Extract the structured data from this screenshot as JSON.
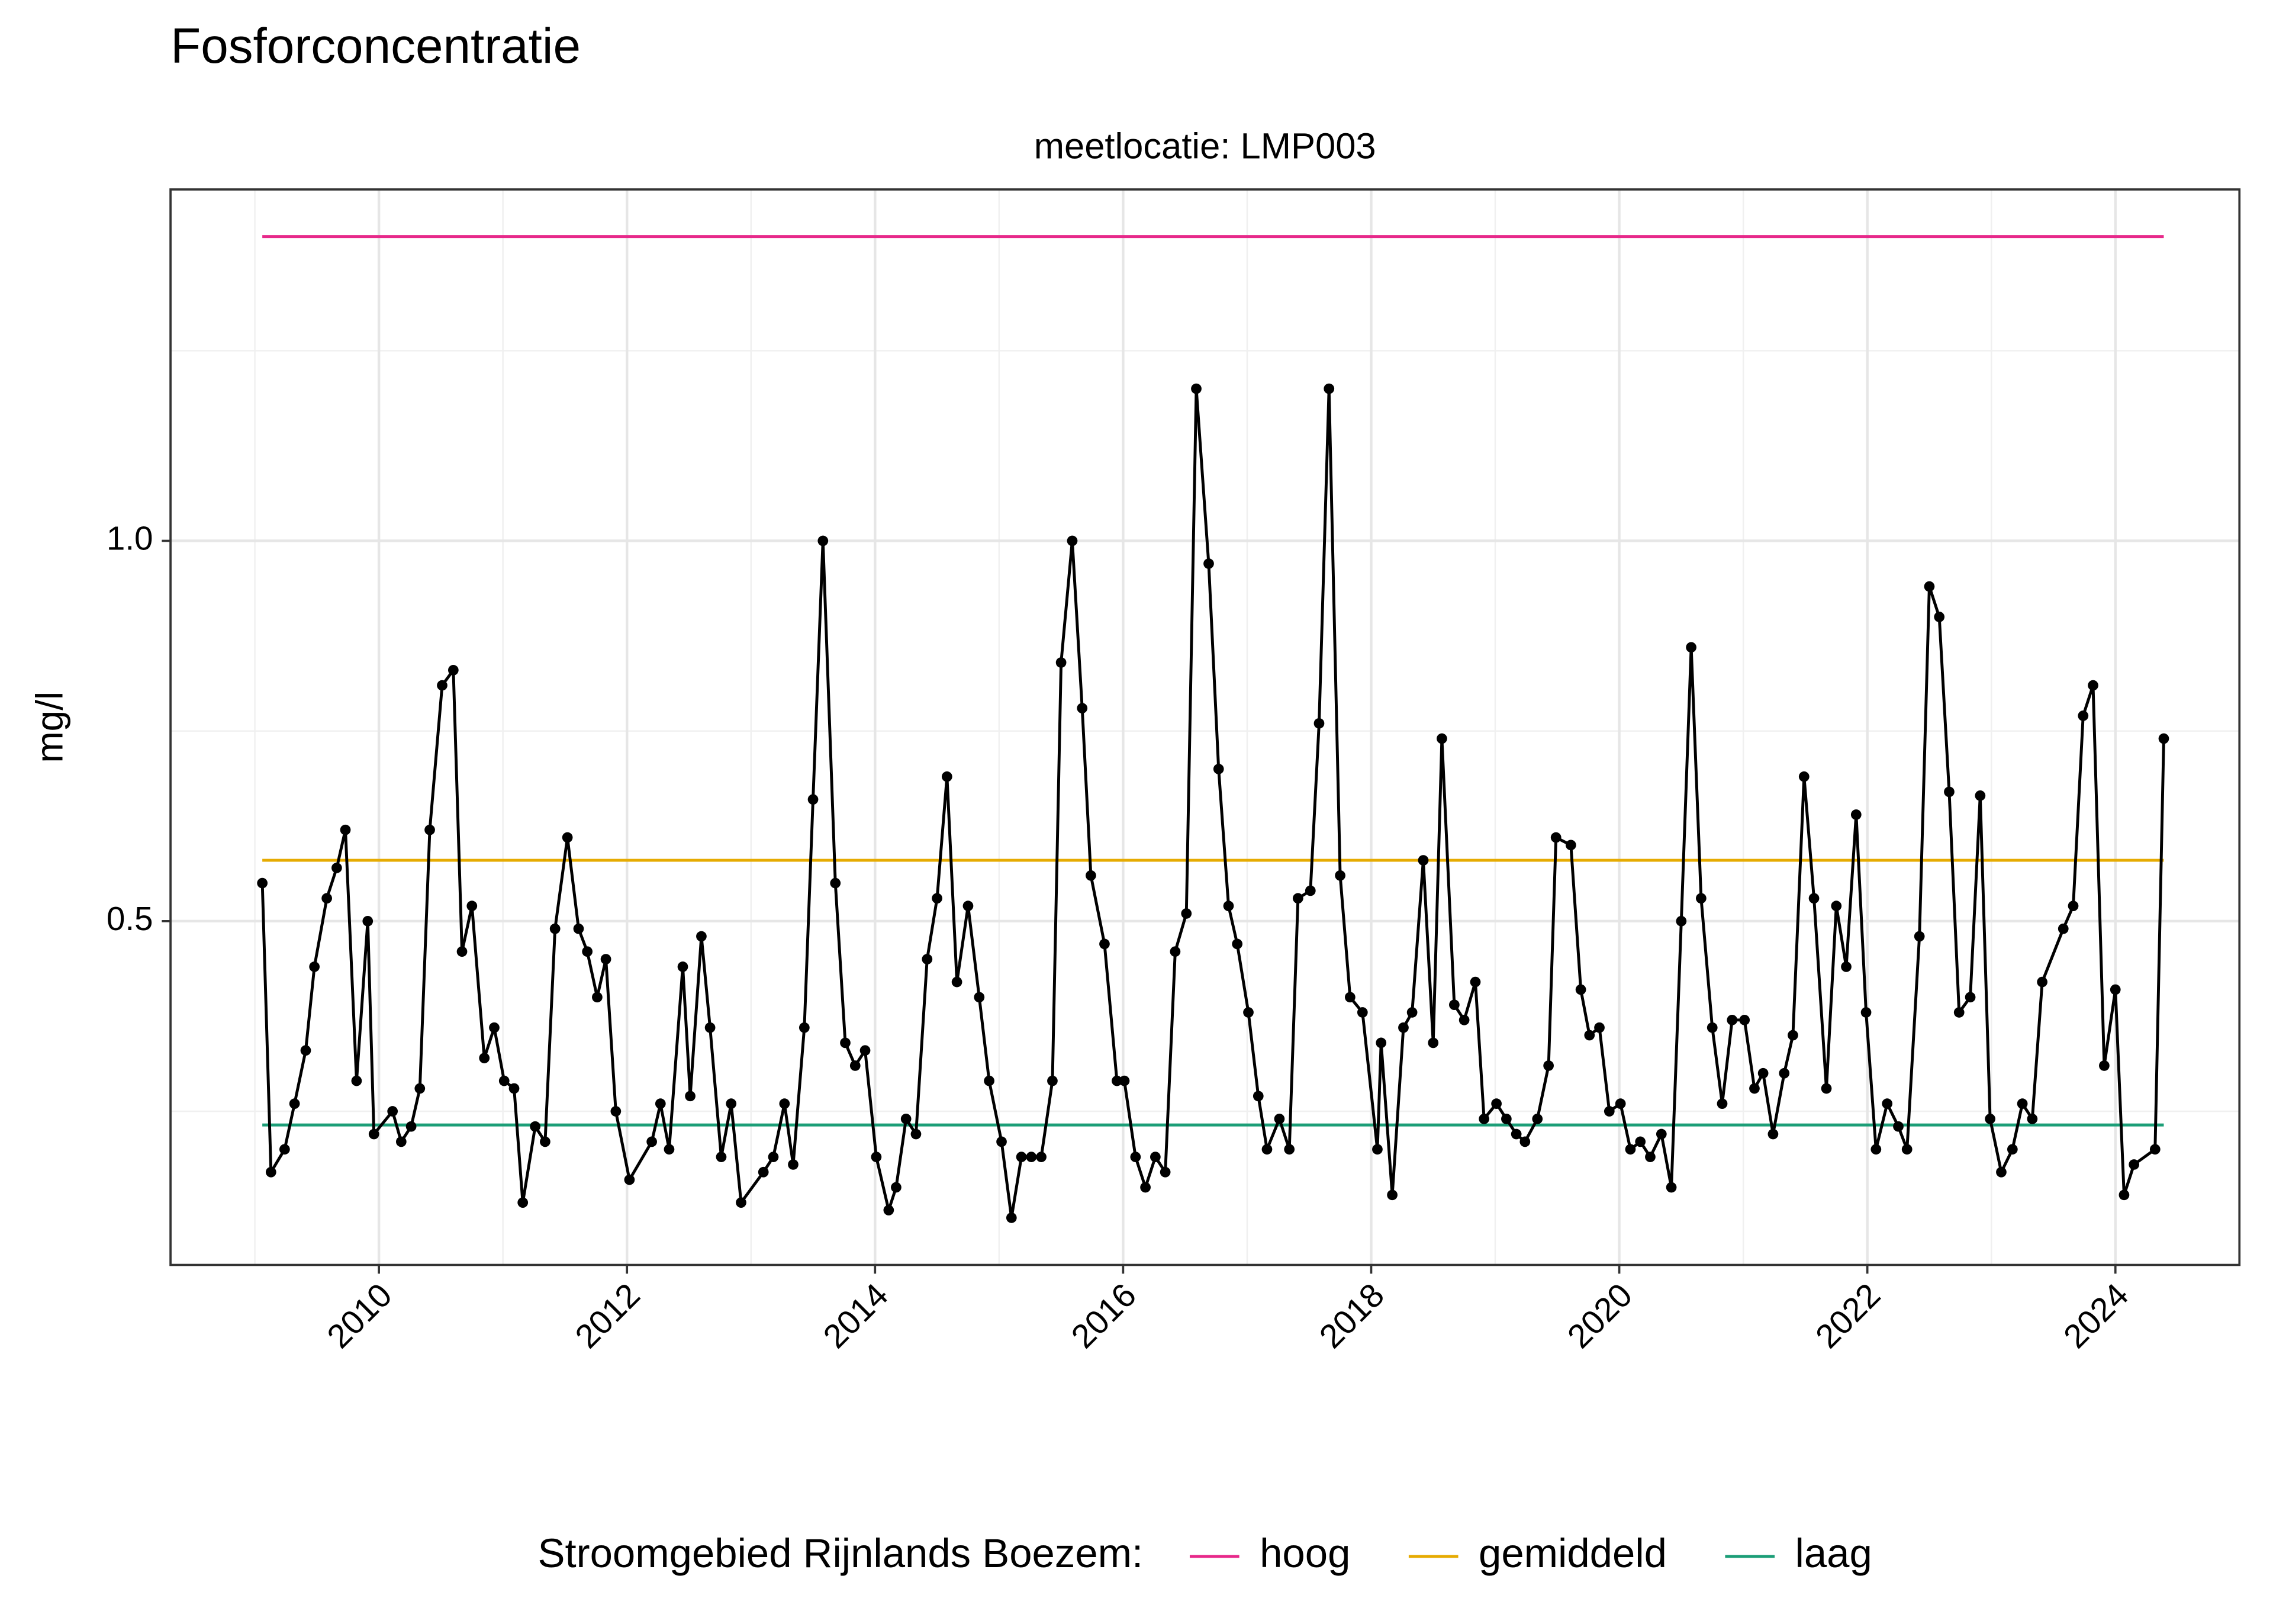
{
  "chart_data": {
    "type": "line",
    "title": "Fosforconcentratie",
    "facet_label": "meetlocatie: LMP003",
    "ylabel": "mg/l",
    "color": "#000000",
    "x": [
      2009.06,
      2009.13,
      2009.24,
      2009.32,
      2009.41,
      2009.48,
      2009.58,
      2009.66,
      2009.73,
      2009.82,
      2009.91,
      2009.96,
      2010.11,
      2010.18,
      2010.26,
      2010.33,
      2010.41,
      2010.51,
      2010.6,
      2010.67,
      2010.75,
      2010.85,
      2010.93,
      2011.01,
      2011.09,
      2011.16,
      2011.26,
      2011.34,
      2011.42,
      2011.52,
      2011.61,
      2011.68,
      2011.76,
      2011.83,
      2011.91,
      2012.02,
      2012.2,
      2012.27,
      2012.34,
      2012.45,
      2012.51,
      2012.6,
      2012.67,
      2012.76,
      2012.84,
      2012.92,
      2013.1,
      2013.18,
      2013.27,
      2013.34,
      2013.43,
      2013.5,
      2013.58,
      2013.68,
      2013.76,
      2013.84,
      2013.92,
      2014.01,
      2014.11,
      2014.17,
      2014.25,
      2014.33,
      2014.42,
      2014.5,
      2014.58,
      2014.66,
      2014.75,
      2014.84,
      2014.92,
      2015.02,
      2015.1,
      2015.18,
      2015.26,
      2015.34,
      2015.43,
      2015.5,
      2015.59,
      2015.67,
      2015.74,
      2015.85,
      2015.95,
      2016.01,
      2016.1,
      2016.18,
      2016.26,
      2016.34,
      2016.42,
      2016.51,
      2016.59,
      2016.69,
      2016.77,
      2016.85,
      2016.92,
      2017.01,
      2017.09,
      2017.16,
      2017.26,
      2017.34,
      2017.41,
      2017.51,
      2017.58,
      2017.66,
      2017.75,
      2017.83,
      2017.93,
      2018.05,
      2018.08,
      2018.17,
      2018.26,
      2018.33,
      2018.42,
      2018.5,
      2018.57,
      2018.67,
      2018.75,
      2018.84,
      2018.91,
      2019.01,
      2019.09,
      2019.17,
      2019.24,
      2019.34,
      2019.43,
      2019.49,
      2019.61,
      2019.69,
      2019.76,
      2019.84,
      2019.92,
      2020.01,
      2020.09,
      2020.17,
      2020.25,
      2020.34,
      2020.42,
      2020.5,
      2020.58,
      2020.66,
      2020.75,
      2020.83,
      2020.91,
      2021.01,
      2021.09,
      2021.16,
      2021.24,
      2021.33,
      2021.4,
      2021.49,
      2021.57,
      2021.67,
      2021.75,
      2021.83,
      2021.91,
      2021.99,
      2022.07,
      2022.16,
      2022.25,
      2022.32,
      2022.42,
      2022.5,
      2022.58,
      2022.66,
      2022.74,
      2022.83,
      2022.91,
      2022.99,
      2023.08,
      2023.17,
      2023.25,
      2023.33,
      2023.41,
      2023.58,
      2023.66,
      2023.74,
      2023.82,
      2023.91,
      2024.0,
      2024.07,
      2024.15,
      2024.32,
      2024.39
    ],
    "values": [
      0.55,
      0.17,
      0.2,
      0.26,
      0.33,
      0.44,
      0.53,
      0.57,
      0.62,
      0.29,
      0.5,
      0.22,
      0.25,
      0.21,
      0.23,
      0.28,
      0.62,
      0.81,
      0.83,
      0.46,
      0.52,
      0.32,
      0.36,
      0.29,
      0.28,
      0.13,
      0.23,
      0.21,
      0.49,
      0.61,
      0.49,
      0.46,
      0.4,
      0.45,
      0.25,
      0.16,
      0.21,
      0.26,
      0.2,
      0.44,
      0.27,
      0.48,
      0.36,
      0.19,
      0.26,
      0.13,
      0.17,
      0.19,
      0.26,
      0.18,
      0.36,
      0.66,
      1.0,
      0.55,
      0.34,
      0.31,
      0.33,
      0.19,
      0.12,
      0.15,
      0.24,
      0.22,
      0.45,
      0.53,
      0.69,
      0.42,
      0.52,
      0.4,
      0.29,
      0.21,
      0.11,
      0.19,
      0.19,
      0.19,
      0.29,
      0.84,
      1.0,
      0.78,
      0.56,
      0.47,
      0.29,
      0.29,
      0.19,
      0.15,
      0.19,
      0.17,
      0.46,
      0.51,
      1.2,
      0.97,
      0.7,
      0.52,
      0.47,
      0.38,
      0.27,
      0.2,
      0.24,
      0.2,
      0.53,
      0.54,
      0.76,
      1.2,
      0.56,
      0.4,
      0.38,
      0.2,
      0.34,
      0.14,
      0.36,
      0.38,
      0.58,
      0.34,
      0.74,
      0.39,
      0.37,
      0.42,
      0.24,
      0.26,
      0.24,
      0.22,
      0.21,
      0.24,
      0.31,
      0.61,
      0.6,
      0.41,
      0.35,
      0.36,
      0.25,
      0.26,
      0.2,
      0.21,
      0.19,
      0.22,
      0.15,
      0.5,
      0.86,
      0.53,
      0.36,
      0.26,
      0.37,
      0.37,
      0.28,
      0.3,
      0.22,
      0.3,
      0.35,
      0.69,
      0.53,
      0.28,
      0.52,
      0.44,
      0.64,
      0.38,
      0.2,
      0.26,
      0.23,
      0.2,
      0.48,
      0.94,
      0.9,
      0.67,
      0.38,
      0.4,
      0.665,
      0.24,
      0.17,
      0.2,
      0.26,
      0.24,
      0.42,
      0.49,
      0.52,
      0.77,
      0.81,
      0.31,
      0.41,
      0.14,
      0.18,
      0.2,
      0.74
    ],
    "reference_lines": [
      {
        "name": "hoog",
        "color": "#e7298a",
        "value": 1.4
      },
      {
        "name": "gemiddeld",
        "color": "#e6ab02",
        "value": 0.58
      },
      {
        "name": "laag",
        "color": "#1b9e77",
        "value": 0.232
      }
    ],
    "legend_title": "Stroomgebied Rijnlands Boezem:",
    "legend_position": "bottom",
    "xlim": [
      2008.32,
      2025.0
    ],
    "ylim": [
      0.048,
      1.462
    ],
    "xticks": [
      2010,
      2012,
      2014,
      2016,
      2018,
      2020,
      2022,
      2024
    ],
    "yticks": [
      0.5,
      {
        "value": 1,
        "label": "1.0"
      }
    ],
    "xminor": [
      2009,
      2011,
      2013,
      2015,
      2017,
      2019,
      2021,
      2023
    ],
    "yminor": [
      0.25,
      0.75,
      1.25
    ],
    "grid": true
  }
}
